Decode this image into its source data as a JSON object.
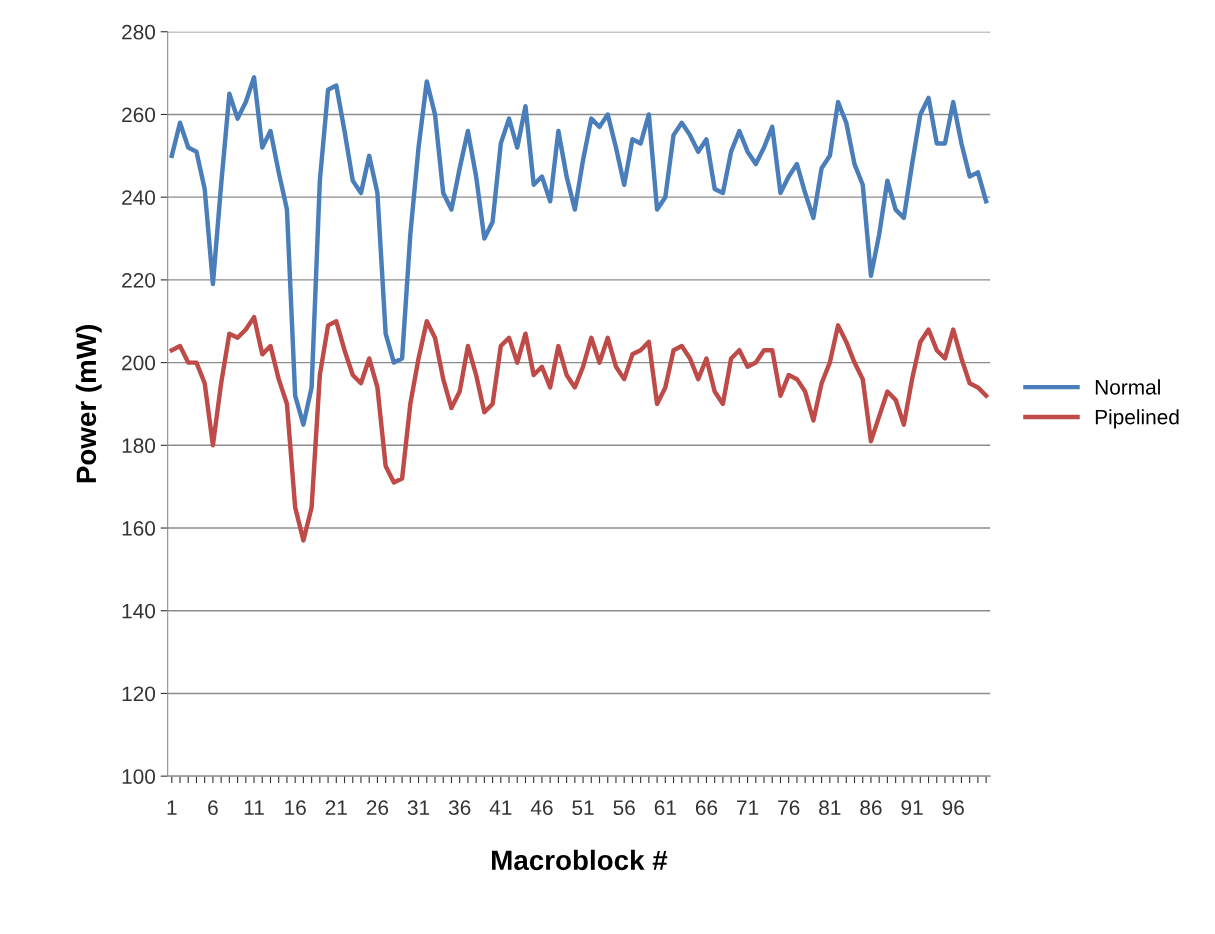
{
  "chart_data": {
    "type": "line",
    "xlabel": "Macroblock #",
    "ylabel": "Power (mW)",
    "categories": [
      "1",
      null,
      null,
      null,
      null,
      "6",
      null,
      null,
      null,
      null,
      "11",
      null,
      null,
      null,
      null,
      "16",
      null,
      null,
      null,
      null,
      "21",
      null,
      null,
      null,
      null,
      "26",
      null,
      null,
      null,
      null,
      "31",
      null,
      null,
      null,
      null,
      "36",
      null,
      null,
      null,
      null,
      "41",
      null,
      null,
      null,
      null,
      "46",
      null,
      null,
      null,
      null,
      "51",
      null,
      null,
      null,
      null,
      "56",
      null,
      null,
      null,
      null,
      "61",
      null,
      null,
      null,
      null,
      "66",
      null,
      null,
      null,
      null,
      "71",
      null,
      null,
      null,
      null,
      "76",
      null,
      null,
      null,
      null,
      "81",
      null,
      null,
      null,
      null,
      "86",
      null,
      null,
      null,
      null,
      "91",
      null,
      null,
      null,
      null,
      "96",
      null,
      null,
      null,
      null
    ],
    "series": [
      {
        "name": "Normal",
        "color": "#4a7ebb",
        "values": [
          250,
          258,
          252,
          251,
          242,
          219,
          243,
          265,
          259,
          263,
          269,
          252,
          256,
          246,
          237,
          192,
          185,
          194,
          244,
          266,
          267,
          256,
          244,
          241,
          250,
          241,
          207,
          200,
          201,
          231,
          252,
          268,
          260,
          241,
          237,
          247,
          256,
          245,
          230,
          234,
          253,
          259,
          252,
          262,
          243,
          245,
          239,
          256,
          245,
          237,
          249,
          259,
          257,
          260,
          252,
          243,
          254,
          253,
          260,
          237,
          240,
          255,
          258,
          255,
          251,
          254,
          242,
          241,
          251,
          256,
          251,
          248,
          252,
          257,
          241,
          245,
          248,
          241,
          235,
          247,
          250,
          263,
          258,
          248,
          243,
          221,
          231,
          244,
          237,
          235,
          248,
          260,
          264,
          253,
          253,
          263,
          253,
          245,
          246,
          239
        ]
      },
      {
        "name": "Pipelined",
        "color": "#be4b48",
        "values": [
          203,
          204,
          200,
          200,
          195,
          180,
          195,
          207,
          206,
          208,
          211,
          202,
          204,
          196,
          190,
          165,
          157,
          165,
          197,
          209,
          210,
          203,
          197,
          195,
          201,
          194,
          175,
          171,
          172,
          190,
          201,
          210,
          206,
          196,
          189,
          193,
          204,
          197,
          188,
          190,
          204,
          206,
          200,
          207,
          197,
          199,
          194,
          204,
          197,
          194,
          199,
          206,
          200,
          206,
          199,
          196,
          202,
          203,
          205,
          190,
          194,
          203,
          204,
          201,
          196,
          201,
          193,
          190,
          201,
          203,
          199,
          200,
          203,
          203,
          192,
          197,
          196,
          193,
          186,
          195,
          200,
          209,
          205,
          200,
          196,
          181,
          187,
          193,
          191,
          185,
          196,
          205,
          208,
          203,
          201,
          208,
          201,
          195,
          194,
          192
        ]
      }
    ],
    "ylim": [
      100,
      280
    ],
    "yticks": [
      100,
      120,
      140,
      160,
      180,
      200,
      220,
      240,
      260,
      280
    ],
    "grid": "y",
    "legend": "right",
    "marker": "none",
    "line_style": "solid"
  }
}
